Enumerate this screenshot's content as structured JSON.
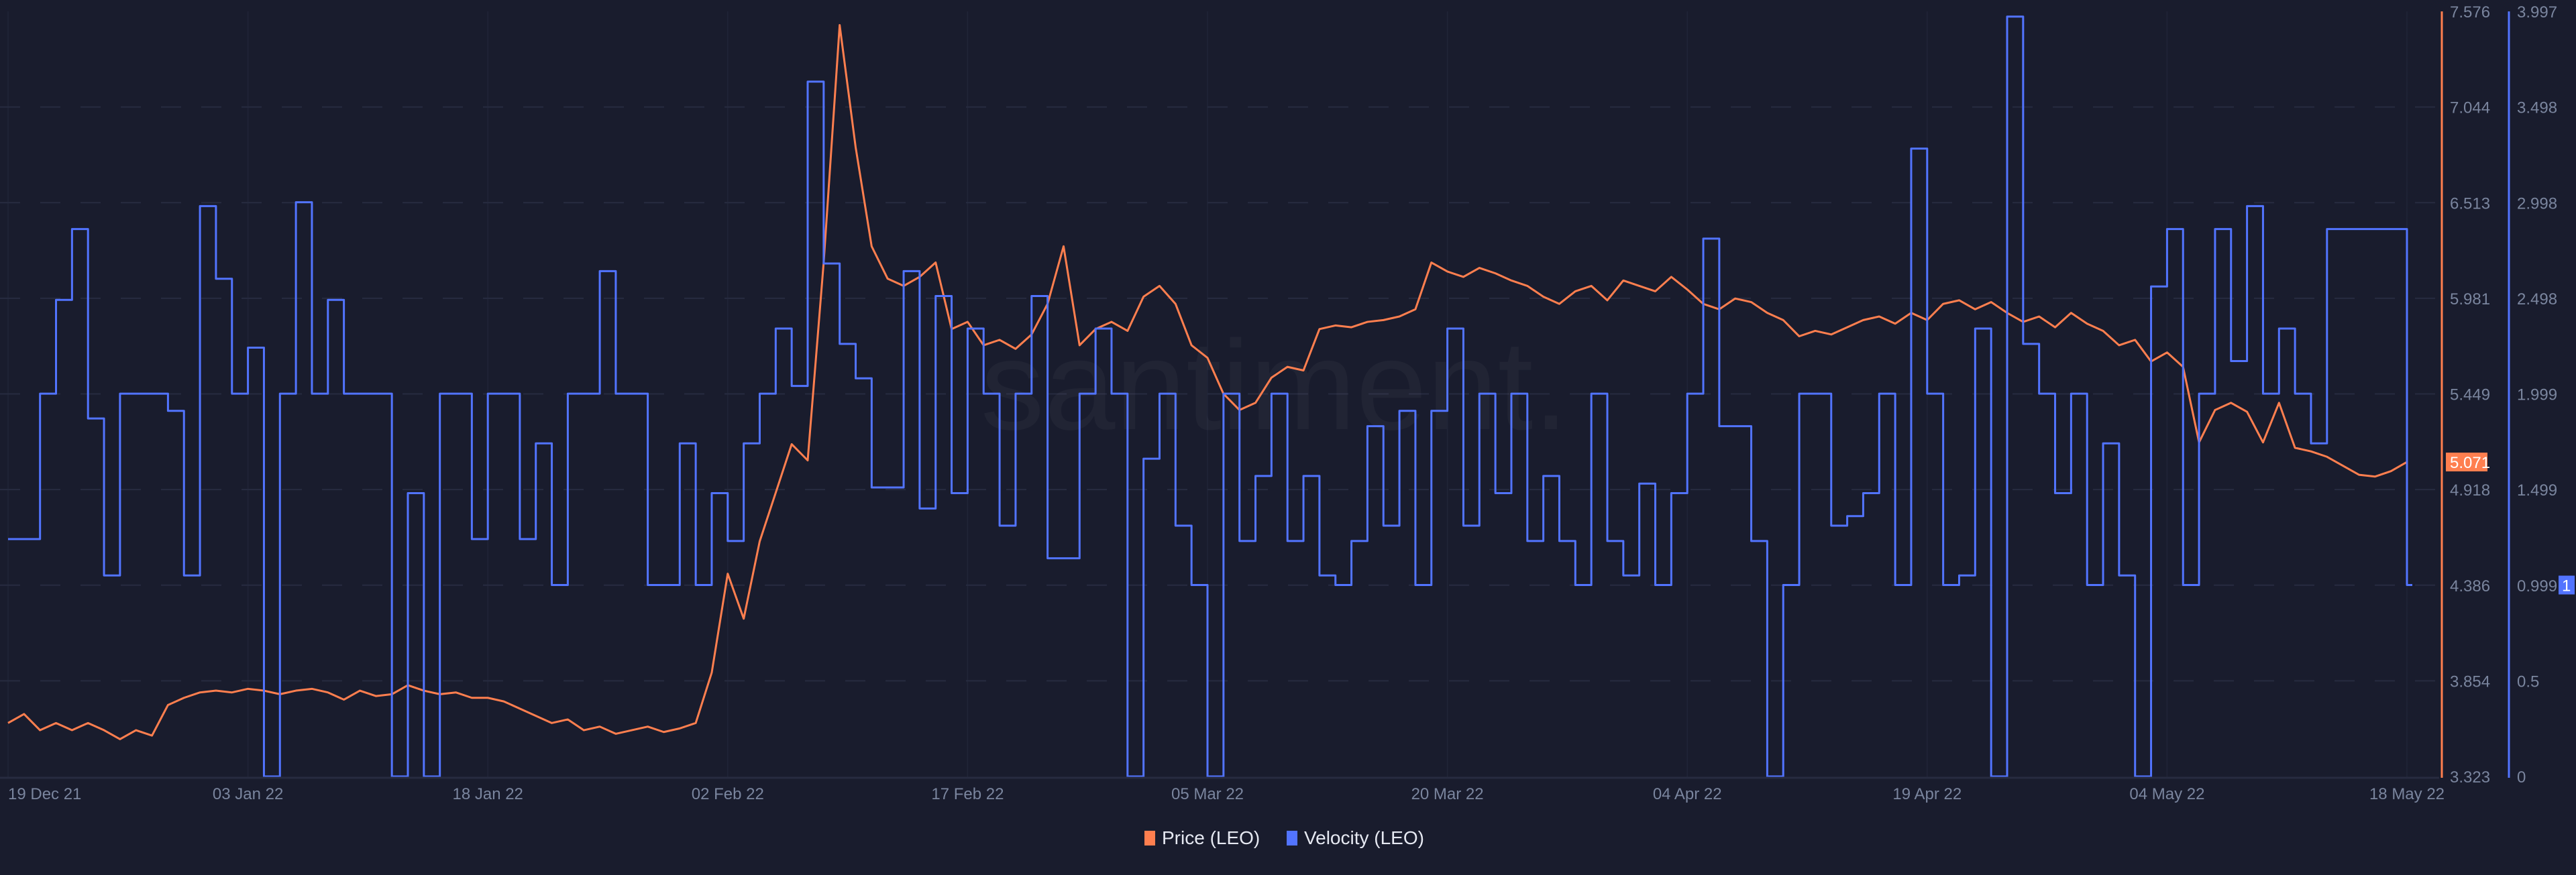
{
  "watermark": "santiment.",
  "colors": {
    "background": "#191c2d",
    "price": "#ff7f4f",
    "velocity": "#5274ff",
    "grid": "#272b40",
    "tick_text": "#7a859e"
  },
  "chart_data": {
    "type": "line",
    "x_start": "2021-12-19",
    "x_step": "1 day",
    "x_ticks": [
      "19 Dec 21",
      "03 Jan 22",
      "18 Jan 22",
      "02 Feb 22",
      "17 Feb 22",
      "05 Mar 22",
      "20 Mar 22",
      "04 Apr 22",
      "19 Apr 22",
      "04 May 22",
      "18 May 22"
    ],
    "grid": true,
    "legend_position": "bottom-center",
    "axes": {
      "price": {
        "ticks": [
          "7.576",
          "7.044",
          "6.513",
          "5.981",
          "5.449",
          "4.918",
          "4.386",
          "3.854",
          "3.323"
        ],
        "ylim": [
          3.323,
          7.576
        ],
        "current_label": "5.071"
      },
      "velocity": {
        "ticks": [
          "3.997",
          "3.498",
          "2.998",
          "2.498",
          "1.999",
          "1.499",
          "0.999",
          "0.5",
          "0"
        ],
        "ylim": [
          0,
          3.997
        ],
        "current_label": "1"
      }
    },
    "series": [
      {
        "name": "Price (LEO)",
        "axis": "price",
        "style": "line",
        "values": [
          3.62,
          3.67,
          3.58,
          3.62,
          3.58,
          3.62,
          3.58,
          3.53,
          3.58,
          3.55,
          3.72,
          3.76,
          3.79,
          3.8,
          3.79,
          3.81,
          3.8,
          3.78,
          3.8,
          3.81,
          3.79,
          3.75,
          3.8,
          3.77,
          3.78,
          3.83,
          3.8,
          3.78,
          3.79,
          3.76,
          3.76,
          3.74,
          3.7,
          3.66,
          3.62,
          3.64,
          3.58,
          3.6,
          3.56,
          3.58,
          3.6,
          3.57,
          3.59,
          3.62,
          3.9,
          4.45,
          4.2,
          4.63,
          4.9,
          5.17,
          5.08,
          6.18,
          7.5,
          6.82,
          6.27,
          6.09,
          6.05,
          6.1,
          6.18,
          5.81,
          5.85,
          5.72,
          5.75,
          5.7,
          5.78,
          5.95,
          6.27,
          5.72,
          5.81,
          5.85,
          5.8,
          5.99,
          6.05,
          5.95,
          5.72,
          5.65,
          5.45,
          5.36,
          5.4,
          5.54,
          5.6,
          5.58,
          5.81,
          5.83,
          5.82,
          5.85,
          5.86,
          5.88,
          5.92,
          6.18,
          6.13,
          6.1,
          6.15,
          6.12,
          6.08,
          6.05,
          5.99,
          5.95,
          6.02,
          6.05,
          5.97,
          6.08,
          6.05,
          6.02,
          6.1,
          6.03,
          5.95,
          5.92,
          5.98,
          5.96,
          5.9,
          5.86,
          5.77,
          5.8,
          5.78,
          5.82,
          5.86,
          5.88,
          5.84,
          5.9,
          5.86,
          5.95,
          5.97,
          5.92,
          5.96,
          5.9,
          5.85,
          5.88,
          5.82,
          5.9,
          5.84,
          5.8,
          5.72,
          5.75,
          5.63,
          5.68,
          5.6,
          5.18,
          5.36,
          5.4,
          5.35,
          5.18,
          5.4,
          5.15,
          5.13,
          5.1,
          5.05,
          5.0,
          4.99,
          5.02,
          5.071
        ]
      },
      {
        "name": "Velocity (LEO)",
        "axis": "velocity",
        "style": "step",
        "values": [
          1.24,
          1.24,
          2.0,
          2.49,
          2.86,
          1.87,
          1.05,
          2.0,
          2.0,
          2.0,
          1.91,
          1.05,
          2.98,
          2.6,
          2.0,
          2.24,
          0,
          2.0,
          3.0,
          2.0,
          2.49,
          2.0,
          2.0,
          2.0,
          0,
          1.48,
          0,
          2.0,
          2.0,
          1.24,
          2.0,
          2.0,
          1.24,
          1.74,
          1.0,
          2.0,
          2.0,
          2.64,
          2.0,
          2.0,
          1.0,
          1.0,
          1.74,
          1.0,
          1.48,
          1.23,
          1.74,
          2.0,
          2.34,
          2.04,
          3.63,
          2.68,
          2.26,
          2.08,
          1.51,
          1.51,
          2.64,
          1.4,
          2.51,
          1.48,
          2.34,
          2.0,
          1.31,
          2.0,
          2.51,
          1.14,
          1.14,
          2.0,
          2.34,
          2.0,
          0,
          1.66,
          2.0,
          1.31,
          1.0,
          0,
          2.0,
          1.23,
          1.57,
          2.0,
          1.23,
          1.57,
          1.05,
          1.0,
          1.23,
          1.83,
          1.31,
          1.91,
          1.0,
          1.91,
          2.34,
          1.31,
          2.0,
          1.48,
          2.0,
          1.23,
          1.57,
          1.23,
          1.0,
          2.0,
          1.23,
          1.05,
          1.53,
          1.0,
          1.48,
          2.0,
          2.81,
          1.83,
          1.83,
          1.23,
          0,
          1.0,
          2.0,
          2.0,
          1.31,
          1.36,
          1.48,
          2.0,
          1.0,
          3.28,
          2.0,
          1.0,
          1.05,
          2.34,
          0,
          3.97,
          2.26,
          2.0,
          1.48,
          2.0,
          1.0,
          1.74,
          1.05,
          0,
          2.56,
          2.86,
          1.0,
          2.0,
          2.86,
          2.17,
          2.98,
          2.0,
          2.34,
          2.0,
          1.74,
          2.86,
          2.86,
          2.86,
          2.86,
          2.86,
          1.0
        ]
      }
    ]
  }
}
